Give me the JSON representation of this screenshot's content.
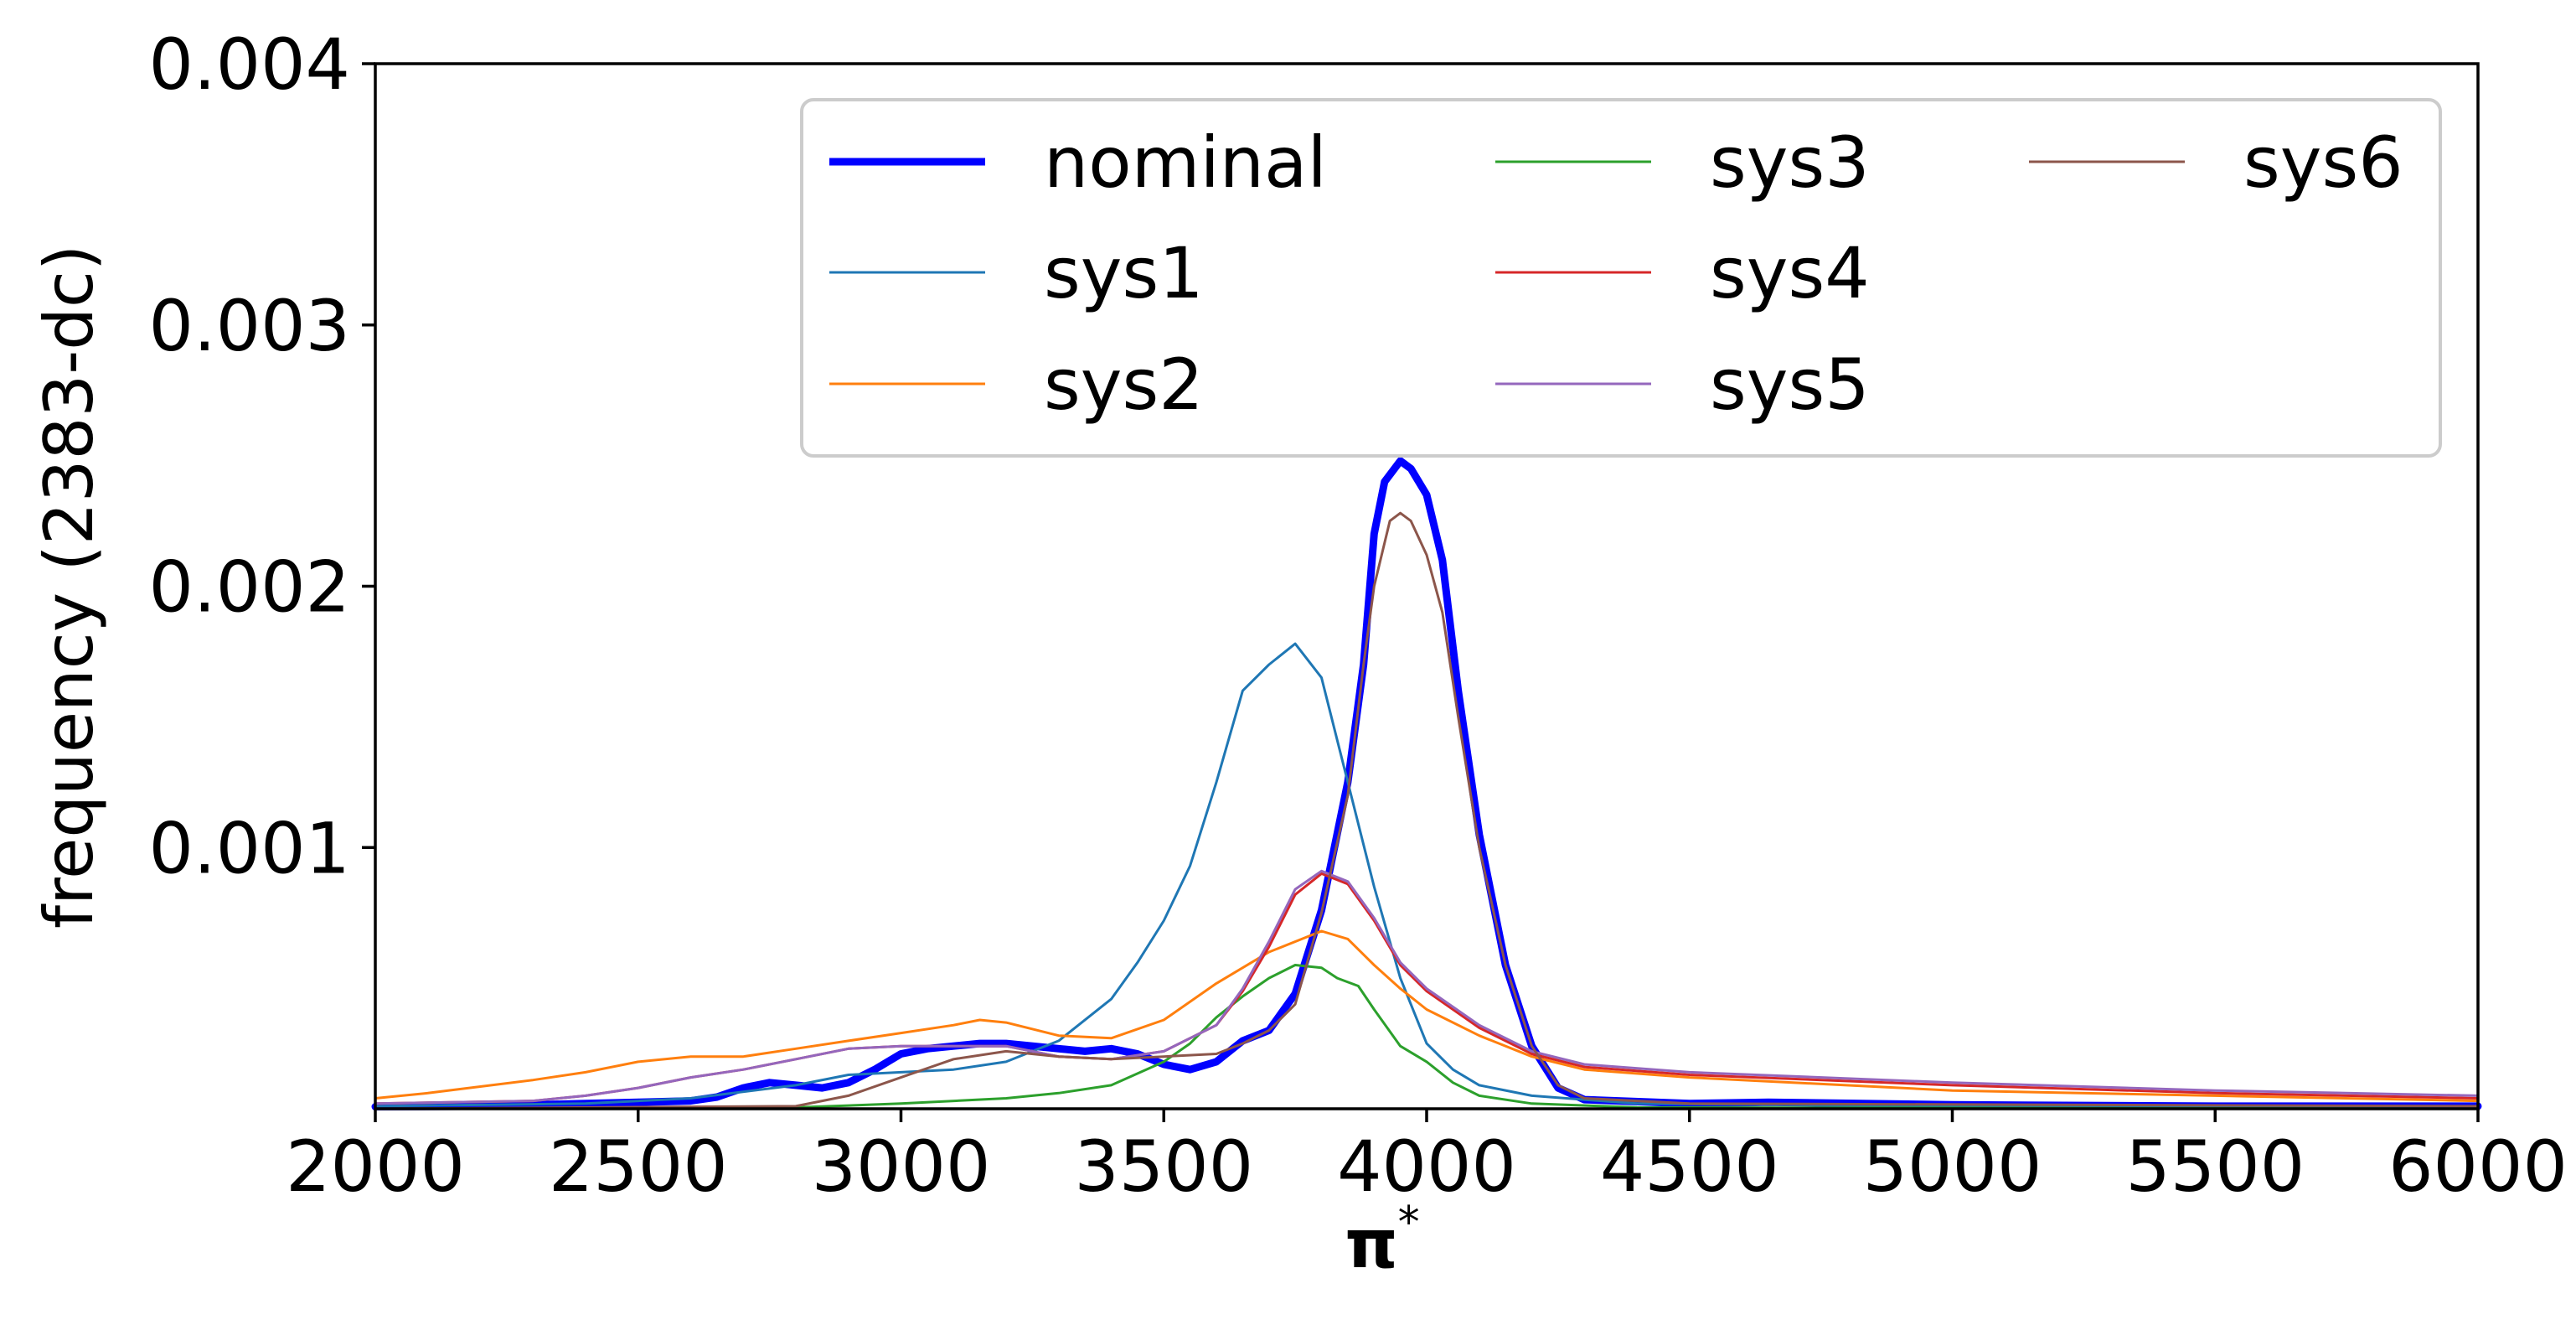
{
  "chart_data": {
    "type": "line",
    "xlabel": "π",
    "xlabel_superscript": "*",
    "ylabel": "frequency (2383-dc)",
    "xlim": [
      2000,
      6000
    ],
    "ylim": [
      0,
      0.004
    ],
    "x_ticks": [
      "2000",
      "2500",
      "3000",
      "3500",
      "4000",
      "4500",
      "5000",
      "5500",
      "6000"
    ],
    "y_ticks": [
      "0.001",
      "0.002",
      "0.003",
      "0.004"
    ],
    "grid": false,
    "legend": {
      "placement": "top-right",
      "columns": 3
    },
    "series": [
      {
        "name": "nominal",
        "color": "#0000ff",
        "emphasis": true,
        "points": [
          [
            2000,
            8e-06
          ],
          [
            2200,
            1e-05
          ],
          [
            2400,
            2e-05
          ],
          [
            2500,
            2.5e-05
          ],
          [
            2600,
            3e-05
          ],
          [
            2650,
            4.5e-05
          ],
          [
            2700,
            8e-05
          ],
          [
            2750,
            0.0001
          ],
          [
            2800,
            9e-05
          ],
          [
            2850,
            8e-05
          ],
          [
            2900,
            0.0001
          ],
          [
            2950,
            0.00015
          ],
          [
            3000,
            0.00021
          ],
          [
            3050,
            0.00023
          ],
          [
            3100,
            0.00024
          ],
          [
            3150,
            0.00025
          ],
          [
            3200,
            0.00025
          ],
          [
            3250,
            0.00024
          ],
          [
            3300,
            0.00023
          ],
          [
            3350,
            0.00022
          ],
          [
            3400,
            0.00023
          ],
          [
            3450,
            0.00021
          ],
          [
            3500,
            0.00017
          ],
          [
            3550,
            0.00015
          ],
          [
            3600,
            0.00018
          ],
          [
            3650,
            0.00026
          ],
          [
            3700,
            0.0003
          ],
          [
            3750,
            0.00044
          ],
          [
            3800,
            0.00076
          ],
          [
            3850,
            0.00125
          ],
          [
            3880,
            0.0017
          ],
          [
            3900,
            0.0022
          ],
          [
            3920,
            0.0024
          ],
          [
            3950,
            0.00248
          ],
          [
            3970,
            0.00245
          ],
          [
            4000,
            0.00235
          ],
          [
            4030,
            0.0021
          ],
          [
            4060,
            0.0016
          ],
          [
            4100,
            0.00105
          ],
          [
            4150,
            0.00055
          ],
          [
            4200,
            0.00024
          ],
          [
            4250,
            8e-05
          ],
          [
            4300,
            3.5e-05
          ],
          [
            4500,
            2e-05
          ],
          [
            4650,
            2.5e-05
          ],
          [
            5000,
            1.5e-05
          ],
          [
            5500,
            1e-05
          ],
          [
            6000,
            1e-05
          ]
        ]
      },
      {
        "name": "sys1",
        "color": "#1f77b4",
        "points": [
          [
            2000,
            1e-05
          ],
          [
            2400,
            2e-05
          ],
          [
            2600,
            4e-05
          ],
          [
            2800,
            9e-05
          ],
          [
            2900,
            0.00013
          ],
          [
            3000,
            0.00014
          ],
          [
            3100,
            0.00015
          ],
          [
            3200,
            0.00018
          ],
          [
            3300,
            0.00026
          ],
          [
            3400,
            0.00042
          ],
          [
            3450,
            0.00056
          ],
          [
            3500,
            0.00072
          ],
          [
            3550,
            0.00093
          ],
          [
            3600,
            0.00125
          ],
          [
            3650,
            0.0016
          ],
          [
            3700,
            0.0017
          ],
          [
            3750,
            0.00178
          ],
          [
            3800,
            0.00165
          ],
          [
            3850,
            0.00125
          ],
          [
            3900,
            0.00085
          ],
          [
            3950,
            0.0005
          ],
          [
            4000,
            0.00025
          ],
          [
            4050,
            0.00015
          ],
          [
            4100,
            9e-05
          ],
          [
            4200,
            5e-05
          ],
          [
            4400,
            2e-05
          ],
          [
            5000,
            1e-05
          ],
          [
            6000,
            8e-06
          ]
        ]
      },
      {
        "name": "sys2",
        "color": "#ff7f0e",
        "points": [
          [
            2000,
            4e-05
          ],
          [
            2100,
            6e-05
          ],
          [
            2300,
            0.00011
          ],
          [
            2400,
            0.00014
          ],
          [
            2500,
            0.00018
          ],
          [
            2600,
            0.0002
          ],
          [
            2700,
            0.0002
          ],
          [
            2800,
            0.00023
          ],
          [
            2900,
            0.00026
          ],
          [
            3000,
            0.00029
          ],
          [
            3100,
            0.00032
          ],
          [
            3150,
            0.00034
          ],
          [
            3200,
            0.00033
          ],
          [
            3300,
            0.00028
          ],
          [
            3400,
            0.00027
          ],
          [
            3500,
            0.00034
          ],
          [
            3600,
            0.00048
          ],
          [
            3700,
            0.0006
          ],
          [
            3800,
            0.00068
          ],
          [
            3850,
            0.00065
          ],
          [
            3900,
            0.00055
          ],
          [
            3950,
            0.00046
          ],
          [
            4000,
            0.00038
          ],
          [
            4100,
            0.00028
          ],
          [
            4200,
            0.0002
          ],
          [
            4300,
            0.00015
          ],
          [
            4500,
            0.00012
          ],
          [
            5000,
            7e-05
          ],
          [
            5500,
            5e-05
          ],
          [
            6000,
            3e-05
          ]
        ]
      },
      {
        "name": "sys3",
        "color": "#2ca02c",
        "points": [
          [
            2000,
            0.0
          ],
          [
            2800,
            5e-06
          ],
          [
            3000,
            2e-05
          ],
          [
            3200,
            4e-05
          ],
          [
            3300,
            6e-05
          ],
          [
            3400,
            9e-05
          ],
          [
            3500,
            0.00018
          ],
          [
            3550,
            0.00025
          ],
          [
            3600,
            0.00035
          ],
          [
            3650,
            0.00043
          ],
          [
            3700,
            0.0005
          ],
          [
            3750,
            0.00055
          ],
          [
            3800,
            0.00054
          ],
          [
            3830,
            0.0005
          ],
          [
            3870,
            0.00047
          ],
          [
            3900,
            0.00038
          ],
          [
            3950,
            0.00024
          ],
          [
            4000,
            0.00018
          ],
          [
            4050,
            0.0001
          ],
          [
            4100,
            5e-05
          ],
          [
            4200,
            2e-05
          ],
          [
            4400,
            5e-06
          ],
          [
            6000,
            0.0
          ]
        ]
      },
      {
        "name": "sys4",
        "color": "#d62728",
        "points": [
          [
            2000,
            2e-05
          ],
          [
            2300,
            3e-05
          ],
          [
            2400,
            5e-05
          ],
          [
            2500,
            8e-05
          ],
          [
            2600,
            0.00012
          ],
          [
            2700,
            0.00015
          ],
          [
            2800,
            0.00019
          ],
          [
            2900,
            0.00023
          ],
          [
            3000,
            0.00024
          ],
          [
            3100,
            0.00024
          ],
          [
            3200,
            0.00024
          ],
          [
            3300,
            0.0002
          ],
          [
            3400,
            0.00019
          ],
          [
            3500,
            0.00022
          ],
          [
            3600,
            0.00032
          ],
          [
            3650,
            0.00045
          ],
          [
            3700,
            0.00062
          ],
          [
            3750,
            0.00082
          ],
          [
            3800,
            0.0009
          ],
          [
            3850,
            0.00086
          ],
          [
            3900,
            0.00072
          ],
          [
            3950,
            0.00055
          ],
          [
            4000,
            0.00045
          ],
          [
            4100,
            0.00031
          ],
          [
            4200,
            0.00021
          ],
          [
            4300,
            0.00016
          ],
          [
            4500,
            0.00013
          ],
          [
            5000,
            9e-05
          ],
          [
            5500,
            6e-05
          ],
          [
            6000,
            4e-05
          ]
        ]
      },
      {
        "name": "sys5",
        "color": "#9467bd",
        "points": [
          [
            2000,
            2e-05
          ],
          [
            2300,
            3e-05
          ],
          [
            2400,
            5e-05
          ],
          [
            2500,
            8e-05
          ],
          [
            2600,
            0.00012
          ],
          [
            2700,
            0.00015
          ],
          [
            2800,
            0.00019
          ],
          [
            2900,
            0.00023
          ],
          [
            3000,
            0.00024
          ],
          [
            3100,
            0.00024
          ],
          [
            3200,
            0.00024
          ],
          [
            3300,
            0.0002
          ],
          [
            3400,
            0.00019
          ],
          [
            3500,
            0.00022
          ],
          [
            3600,
            0.00032
          ],
          [
            3650,
            0.00046
          ],
          [
            3700,
            0.00064
          ],
          [
            3750,
            0.00084
          ],
          [
            3800,
            0.00091
          ],
          [
            3850,
            0.00087
          ],
          [
            3900,
            0.00073
          ],
          [
            3950,
            0.00056
          ],
          [
            4000,
            0.00046
          ],
          [
            4100,
            0.00032
          ],
          [
            4200,
            0.00022
          ],
          [
            4300,
            0.00017
          ],
          [
            4500,
            0.00014
          ],
          [
            5000,
            0.0001
          ],
          [
            5500,
            7e-05
          ],
          [
            6000,
            5e-05
          ]
        ]
      },
      {
        "name": "sys6",
        "color": "#8c564b",
        "points": [
          [
            2000,
            0.0
          ],
          [
            2800,
            1e-05
          ],
          [
            2900,
            5e-05
          ],
          [
            3000,
            0.00012
          ],
          [
            3100,
            0.00019
          ],
          [
            3200,
            0.00022
          ],
          [
            3300,
            0.0002
          ],
          [
            3400,
            0.00019
          ],
          [
            3500,
            0.0002
          ],
          [
            3600,
            0.00021
          ],
          [
            3650,
            0.00025
          ],
          [
            3700,
            0.0003
          ],
          [
            3750,
            0.0004
          ],
          [
            3800,
            0.00075
          ],
          [
            3850,
            0.0012
          ],
          [
            3880,
            0.0017
          ],
          [
            3900,
            0.002
          ],
          [
            3930,
            0.00225
          ],
          [
            3950,
            0.00228
          ],
          [
            3970,
            0.00225
          ],
          [
            4000,
            0.00212
          ],
          [
            4030,
            0.0019
          ],
          [
            4060,
            0.0015
          ],
          [
            4100,
            0.001
          ],
          [
            4150,
            0.00055
          ],
          [
            4200,
            0.00024
          ],
          [
            4250,
            9e-05
          ],
          [
            4300,
            4e-05
          ],
          [
            4500,
            2e-05
          ],
          [
            6000,
            1e-05
          ]
        ]
      }
    ]
  }
}
